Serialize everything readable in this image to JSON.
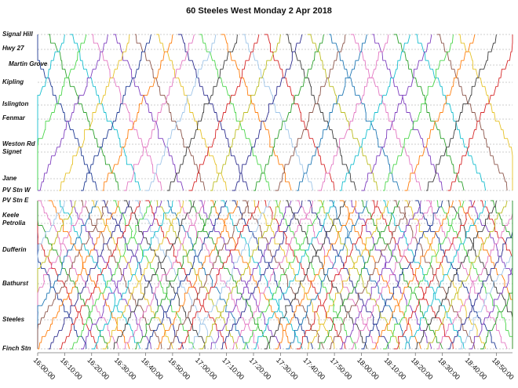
{
  "chart_data": {
    "type": "line",
    "title": "60  Steeles  West Monday  2 Apr 2018",
    "stops": [
      "Signal Hill",
      "Hwy 27",
      "Martin Grove",
      "Kipling",
      "Islington",
      "Fenmar",
      "Weston Rd",
      "Signet",
      "Jane",
      "PV Stn W",
      "PV Stn E",
      "Keele",
      "Petrolia",
      "Dufferin",
      "Bathurst",
      "Steeles",
      "Finch Stn"
    ],
    "x_ticks": [
      "16:00:00",
      "16:10:00",
      "16:20:00",
      "16:30:00",
      "16:40:00",
      "16:50:00",
      "17:00:00",
      "17:10:00",
      "17:20:00",
      "17:30:00",
      "17:40:00",
      "17:50:00",
      "18:00:00",
      "18:10:00",
      "18:20:00",
      "18:30:00",
      "18:40:00",
      "18:50:00"
    ],
    "xlim": [
      "16:00:00",
      "18:56:00"
    ],
    "gridlines": "dashed horizontal at each stop",
    "series_note": "Each vehicle trip is a stepped diagonal line; westbound trips run from Finch Stn up toward Signal Hill, eastbound trips run downward. Western branch (Signal Hill - PV Stn W) has fewer trips than the eastern section (PV Stn E - Finch Stn).",
    "west_trips": [
      {
        "start": "15:56",
        "dir": "down",
        "color": "#1f3a93"
      },
      {
        "start": "16:04",
        "dir": "down",
        "color": "#2ca02c"
      },
      {
        "start": "16:12",
        "dir": "down",
        "color": "#17becf"
      },
      {
        "start": "16:20",
        "dir": "down",
        "color": "#e377c2"
      },
      {
        "start": "16:28",
        "dir": "down",
        "color": "#7f3fbf"
      },
      {
        "start": "16:36",
        "dir": "down",
        "color": "#8c564b"
      },
      {
        "start": "16:44",
        "dir": "down",
        "color": "#e6c229"
      },
      {
        "start": "16:52",
        "dir": "down",
        "color": "#2f2f8f"
      },
      {
        "start": "17:00",
        "dir": "down",
        "color": "#4bd64b"
      },
      {
        "start": "17:08",
        "dir": "down",
        "color": "#ff7f0e"
      },
      {
        "start": "17:16",
        "dir": "down",
        "color": "#9fc5e8"
      },
      {
        "start": "17:24",
        "dir": "down",
        "color": "#d62728"
      },
      {
        "start": "17:32",
        "dir": "down",
        "color": "#3b3b3b"
      },
      {
        "start": "17:40",
        "dir": "down",
        "color": "#bcbd22"
      },
      {
        "start": "17:48",
        "dir": "down",
        "color": "#1f77b4"
      },
      {
        "start": "17:56",
        "dir": "down",
        "color": "#e377c2"
      },
      {
        "start": "18:04",
        "dir": "down",
        "color": "#7f3fbf"
      },
      {
        "start": "18:12",
        "dir": "down",
        "color": "#2ca02c"
      },
      {
        "start": "18:20",
        "dir": "down",
        "color": "#17becf"
      },
      {
        "start": "18:28",
        "dir": "down",
        "color": "#8c564b"
      },
      {
        "start": "18:36",
        "dir": "down",
        "color": "#e6c229"
      },
      {
        "start": "15:44",
        "dir": "up",
        "color": "#17becf"
      },
      {
        "start": "15:52",
        "dir": "up",
        "color": "#4bd64b"
      },
      {
        "start": "16:00",
        "dir": "up",
        "color": "#7f3fbf"
      },
      {
        "start": "16:08",
        "dir": "up",
        "color": "#e6c229"
      },
      {
        "start": "16:16",
        "dir": "up",
        "color": "#1f3a93"
      },
      {
        "start": "16:24",
        "dir": "up",
        "color": "#ff7f0e"
      },
      {
        "start": "16:32",
        "dir": "up",
        "color": "#e377c2"
      },
      {
        "start": "16:40",
        "dir": "up",
        "color": "#9fc5e8"
      },
      {
        "start": "16:48",
        "dir": "up",
        "color": "#3b3b3b"
      },
      {
        "start": "16:56",
        "dir": "up",
        "color": "#d62728"
      },
      {
        "start": "17:04",
        "dir": "up",
        "color": "#bcbd22"
      },
      {
        "start": "17:12",
        "dir": "up",
        "color": "#2f2f8f"
      },
      {
        "start": "17:20",
        "dir": "up",
        "color": "#2ca02c"
      },
      {
        "start": "17:28",
        "dir": "up",
        "color": "#8c564b"
      },
      {
        "start": "17:36",
        "dir": "up",
        "color": "#1f77b4"
      },
      {
        "start": "17:44",
        "dir": "up",
        "color": "#e377c2"
      },
      {
        "start": "17:52",
        "dir": "up",
        "color": "#17becf"
      },
      {
        "start": "18:00",
        "dir": "up",
        "color": "#7f3fbf"
      },
      {
        "start": "18:08",
        "dir": "up",
        "color": "#4bd64b"
      },
      {
        "start": "18:16",
        "dir": "up",
        "color": "#ff7f0e"
      },
      {
        "start": "18:24",
        "dir": "up",
        "color": "#3b3b3b"
      },
      {
        "start": "18:32",
        "dir": "up",
        "color": "#d62728"
      }
    ],
    "east_trips": [
      {
        "start": "15:48",
        "dir": "down",
        "color": "#1f3a93"
      },
      {
        "start": "15:52",
        "dir": "down",
        "color": "#d62728"
      },
      {
        "start": "15:56",
        "dir": "down",
        "color": "#2ca02c"
      },
      {
        "start": "16:00",
        "dir": "down",
        "color": "#e377c2"
      },
      {
        "start": "16:04",
        "dir": "down",
        "color": "#ff7f0e"
      },
      {
        "start": "16:08",
        "dir": "down",
        "color": "#17becf"
      },
      {
        "start": "16:12",
        "dir": "down",
        "color": "#7f3fbf"
      },
      {
        "start": "16:16",
        "dir": "down",
        "color": "#8c564b"
      },
      {
        "start": "16:20",
        "dir": "down",
        "color": "#e6c229"
      },
      {
        "start": "16:24",
        "dir": "down",
        "color": "#2f2f8f"
      },
      {
        "start": "16:28",
        "dir": "down",
        "color": "#4bd64b"
      },
      {
        "start": "16:32",
        "dir": "down",
        "color": "#3b3b3b"
      },
      {
        "start": "16:36",
        "dir": "down",
        "color": "#9fc5e8"
      },
      {
        "start": "16:40",
        "dir": "down",
        "color": "#d62728"
      },
      {
        "start": "16:44",
        "dir": "down",
        "color": "#bcbd22"
      },
      {
        "start": "16:48",
        "dir": "down",
        "color": "#1f77b4"
      },
      {
        "start": "16:52",
        "dir": "down",
        "color": "#e377c2"
      },
      {
        "start": "16:56",
        "dir": "down",
        "color": "#2ca02c"
      },
      {
        "start": "17:00",
        "dir": "down",
        "color": "#7f3fbf"
      },
      {
        "start": "17:04",
        "dir": "down",
        "color": "#ff7f0e"
      },
      {
        "start": "17:08",
        "dir": "down",
        "color": "#17becf"
      },
      {
        "start": "17:12",
        "dir": "down",
        "color": "#1f3a93"
      },
      {
        "start": "17:16",
        "dir": "down",
        "color": "#8c564b"
      },
      {
        "start": "17:20",
        "dir": "down",
        "color": "#e6c229"
      },
      {
        "start": "17:24",
        "dir": "down",
        "color": "#d62728"
      },
      {
        "start": "17:28",
        "dir": "down",
        "color": "#4bd64b"
      },
      {
        "start": "17:32",
        "dir": "down",
        "color": "#3b3b3b"
      },
      {
        "start": "17:36",
        "dir": "down",
        "color": "#e377c2"
      },
      {
        "start": "17:40",
        "dir": "down",
        "color": "#2f2f8f"
      },
      {
        "start": "17:44",
        "dir": "down",
        "color": "#bcbd22"
      },
      {
        "start": "17:48",
        "dir": "down",
        "color": "#1f77b4"
      },
      {
        "start": "17:52",
        "dir": "down",
        "color": "#ff7f0e"
      },
      {
        "start": "17:56",
        "dir": "down",
        "color": "#7f3fbf"
      },
      {
        "start": "18:00",
        "dir": "down",
        "color": "#2ca02c"
      },
      {
        "start": "18:04",
        "dir": "down",
        "color": "#d62728"
      },
      {
        "start": "18:08",
        "dir": "down",
        "color": "#17becf"
      },
      {
        "start": "18:12",
        "dir": "down",
        "color": "#8c564b"
      },
      {
        "start": "18:16",
        "dir": "down",
        "color": "#e6c229"
      },
      {
        "start": "18:20",
        "dir": "down",
        "color": "#1f3a93"
      },
      {
        "start": "18:24",
        "dir": "down",
        "color": "#e377c2"
      },
      {
        "start": "18:28",
        "dir": "down",
        "color": "#4bd64b"
      },
      {
        "start": "18:32",
        "dir": "down",
        "color": "#3b3b3b"
      },
      {
        "start": "18:36",
        "dir": "down",
        "color": "#ff7f0e"
      },
      {
        "start": "18:40",
        "dir": "down",
        "color": "#7f3fbf"
      },
      {
        "start": "18:44",
        "dir": "down",
        "color": "#d62728"
      },
      {
        "start": "18:48",
        "dir": "down",
        "color": "#2ca02c"
      },
      {
        "start": "15:40",
        "dir": "up",
        "color": "#9fc5e8"
      },
      {
        "start": "15:44",
        "dir": "up",
        "color": "#bcbd22"
      },
      {
        "start": "15:48",
        "dir": "up",
        "color": "#e377c2"
      },
      {
        "start": "15:52",
        "dir": "up",
        "color": "#1f77b4"
      },
      {
        "start": "15:56",
        "dir": "up",
        "color": "#8c564b"
      },
      {
        "start": "16:00",
        "dir": "up",
        "color": "#ff7f0e"
      },
      {
        "start": "16:04",
        "dir": "up",
        "color": "#2f2f8f"
      },
      {
        "start": "16:08",
        "dir": "up",
        "color": "#d62728"
      },
      {
        "start": "16:12",
        "dir": "up",
        "color": "#4bd64b"
      },
      {
        "start": "16:16",
        "dir": "up",
        "color": "#7f3fbf"
      },
      {
        "start": "16:20",
        "dir": "up",
        "color": "#17becf"
      },
      {
        "start": "16:24",
        "dir": "up",
        "color": "#e6c229"
      },
      {
        "start": "16:28",
        "dir": "up",
        "color": "#3b3b3b"
      },
      {
        "start": "16:32",
        "dir": "up",
        "color": "#e377c2"
      },
      {
        "start": "16:36",
        "dir": "up",
        "color": "#2ca02c"
      },
      {
        "start": "16:40",
        "dir": "up",
        "color": "#1f3a93"
      },
      {
        "start": "16:44",
        "dir": "up",
        "color": "#ff7f0e"
      },
      {
        "start": "16:48",
        "dir": "up",
        "color": "#8c564b"
      },
      {
        "start": "16:52",
        "dir": "up",
        "color": "#d62728"
      },
      {
        "start": "16:56",
        "dir": "up",
        "color": "#9fc5e8"
      },
      {
        "start": "17:00",
        "dir": "up",
        "color": "#bcbd22"
      },
      {
        "start": "17:04",
        "dir": "up",
        "color": "#7f3fbf"
      },
      {
        "start": "17:08",
        "dir": "up",
        "color": "#2f2f8f"
      },
      {
        "start": "17:12",
        "dir": "up",
        "color": "#e377c2"
      },
      {
        "start": "17:16",
        "dir": "up",
        "color": "#4bd64b"
      },
      {
        "start": "17:20",
        "dir": "up",
        "color": "#17becf"
      },
      {
        "start": "17:24",
        "dir": "up",
        "color": "#3b3b3b"
      },
      {
        "start": "17:28",
        "dir": "up",
        "color": "#ff7f0e"
      },
      {
        "start": "17:32",
        "dir": "up",
        "color": "#1f77b4"
      },
      {
        "start": "17:36",
        "dir": "up",
        "color": "#d62728"
      },
      {
        "start": "17:40",
        "dir": "up",
        "color": "#e6c229"
      },
      {
        "start": "17:44",
        "dir": "up",
        "color": "#2ca02c"
      },
      {
        "start": "17:48",
        "dir": "up",
        "color": "#8c564b"
      },
      {
        "start": "17:52",
        "dir": "up",
        "color": "#7f3fbf"
      },
      {
        "start": "17:56",
        "dir": "up",
        "color": "#e377c2"
      },
      {
        "start": "18:00",
        "dir": "up",
        "color": "#1f3a93"
      },
      {
        "start": "18:04",
        "dir": "up",
        "color": "#ff7f0e"
      },
      {
        "start": "18:08",
        "dir": "up",
        "color": "#4bd64b"
      },
      {
        "start": "18:12",
        "dir": "up",
        "color": "#d62728"
      },
      {
        "start": "18:16",
        "dir": "up",
        "color": "#17becf"
      },
      {
        "start": "18:20",
        "dir": "up",
        "color": "#3b3b3b"
      },
      {
        "start": "18:24",
        "dir": "up",
        "color": "#bcbd22"
      },
      {
        "start": "18:28",
        "dir": "up",
        "color": "#e377c2"
      },
      {
        "start": "18:32",
        "dir": "up",
        "color": "#2f2f8f"
      },
      {
        "start": "18:36",
        "dir": "up",
        "color": "#9fc5e8"
      },
      {
        "start": "18:40",
        "dir": "up",
        "color": "#7f3fbf"
      },
      {
        "start": "18:44",
        "dir": "up",
        "color": "#2ca02c"
      }
    ]
  }
}
